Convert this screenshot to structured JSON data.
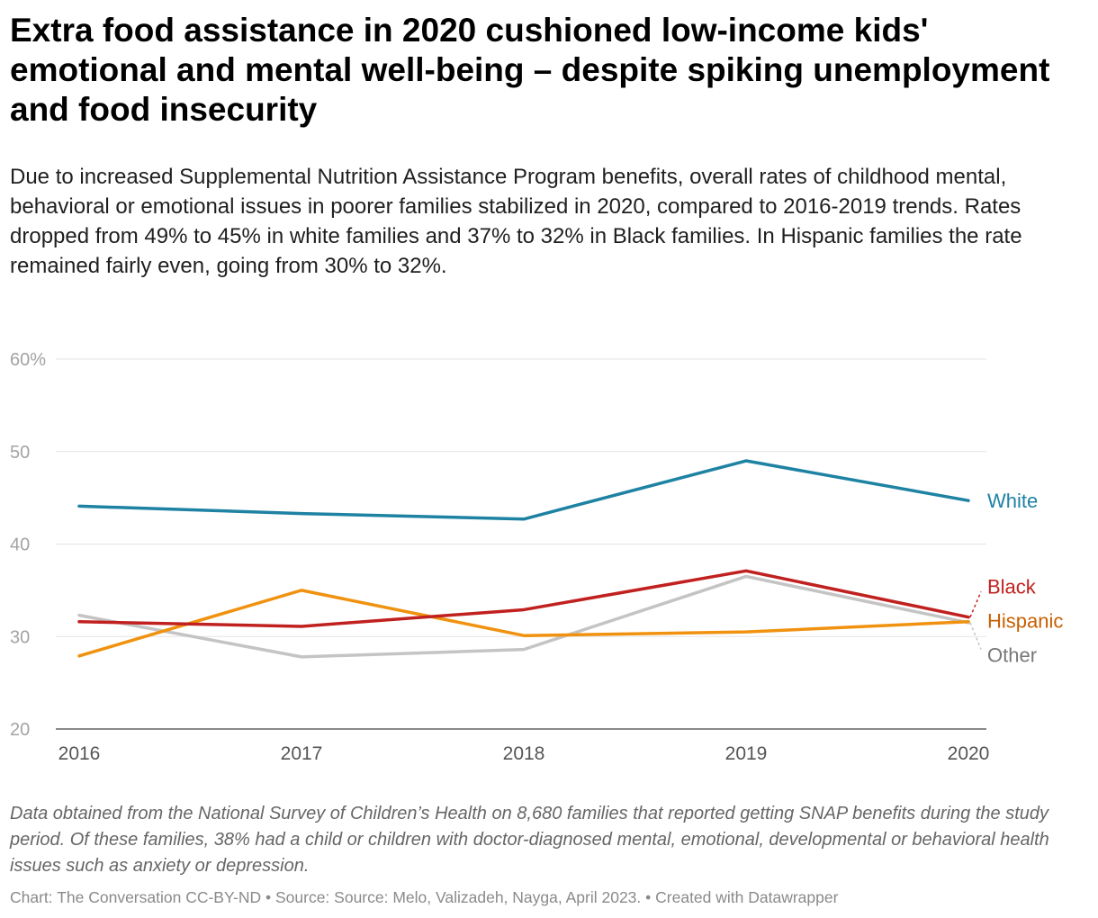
{
  "header": {
    "title": "Extra food assistance in 2020 cushioned low-income kids' emotional and mental well-being – despite spiking unemployment and food insecurity",
    "subtitle": "Due to increased Supplemental Nutrition Assistance Program benefits, overall rates of childhood mental, behavioral or emotional issues in poorer families stabilized in 2020, compared to 2016-2019 trends. Rates dropped from 49% to 45% in white families and 37% to 32% in Black families. In Hispanic families the rate remained fairly even, going from 30% to 32%."
  },
  "footer": {
    "note": "Data obtained from the National Survey of Children’s Health on 8,680 families that reported getting SNAP benefits during the study period. Of these families, 38% had a child or children with doctor-diagnosed mental, emotional, developmental or behavioral health issues such as anxiety or depression.",
    "credit": "Chart: The Conversation CC-BY-ND • Source: Source: Melo, Valizadeh, Nayga, April 2023. • Created with Datawrapper"
  },
  "chart_data": {
    "type": "line",
    "x": [
      "2016",
      "2017",
      "2018",
      "2019",
      "2020"
    ],
    "ylim": [
      20,
      60
    ],
    "yticks": [
      20,
      30,
      40,
      50,
      60
    ],
    "ytick_labels": [
      "20",
      "30",
      "40",
      "50",
      "60%"
    ],
    "grid": true,
    "legend": "inline labels at right end of lines",
    "series": [
      {
        "name": "Other",
        "color": "#c4c4c4",
        "label_color": "#777777",
        "values": [
          32.3,
          27.8,
          28.6,
          36.5,
          31.5
        ]
      },
      {
        "name": "Hispanic",
        "color": "#f0920f",
        "label_color": "#c95f00",
        "values": [
          27.9,
          35.0,
          30.1,
          30.5,
          31.6
        ]
      },
      {
        "name": "Black",
        "color": "#c0211f",
        "label_color": "#c0211f",
        "values": [
          31.6,
          31.1,
          32.9,
          37.1,
          32.1
        ]
      },
      {
        "name": "White",
        "color": "#1e82a3",
        "label_color": "#1e82a3",
        "values": [
          44.1,
          43.3,
          42.7,
          49.0,
          44.7
        ]
      }
    ]
  }
}
